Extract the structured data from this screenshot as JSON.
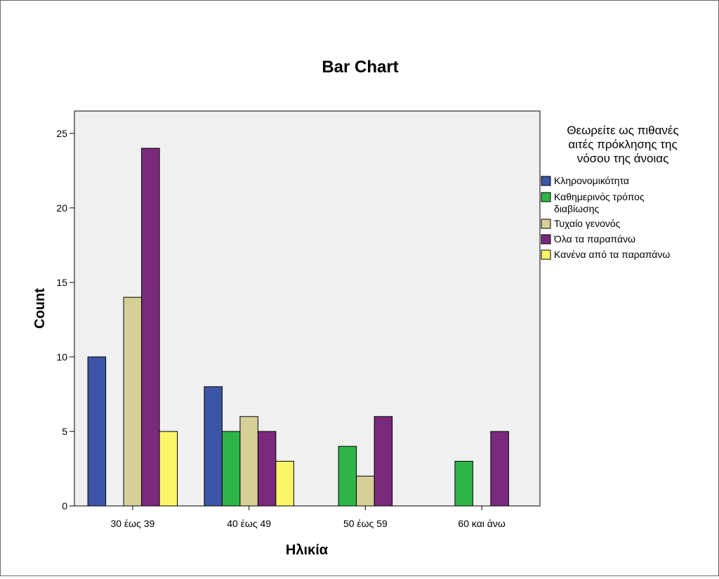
{
  "chart_data": {
    "type": "bar",
    "title": "Bar Chart",
    "xlabel": "Ηλικία",
    "ylabel": "Count",
    "categories": [
      "30 έως 39",
      "40 έως 49",
      "50 έως 59",
      "60 και άνω"
    ],
    "series": [
      {
        "name": "Κληρονομικότητα",
        "color": "#3d55a6",
        "values": [
          10,
          8,
          0,
          0
        ]
      },
      {
        "name": "Καθημερινός τρόπος διαβίωσης",
        "color": "#2fb44a",
        "values": [
          0,
          5,
          4,
          3
        ]
      },
      {
        "name": "Τυχαίο γενονός",
        "color": "#d6d098",
        "values": [
          14,
          6,
          2,
          0
        ]
      },
      {
        "name": "Όλα τα παραπάνω",
        "color": "#7a2a7c",
        "values": [
          24,
          5,
          6,
          5
        ]
      },
      {
        "name": "Κανένα από τα παραπάνω",
        "color": "#fbf56a",
        "values": [
          5,
          3,
          0,
          0
        ]
      }
    ],
    "legend_title": "Θεωρείτε ως πιθανές αιτές πρόκλησης της νόσου της άνοιας",
    "legend_position": "right",
    "ylim": [
      0,
      26.5
    ],
    "yticks": [
      0,
      5,
      10,
      15,
      20,
      25
    ],
    "grid": false,
    "plot_background": "#f0f0f0"
  }
}
